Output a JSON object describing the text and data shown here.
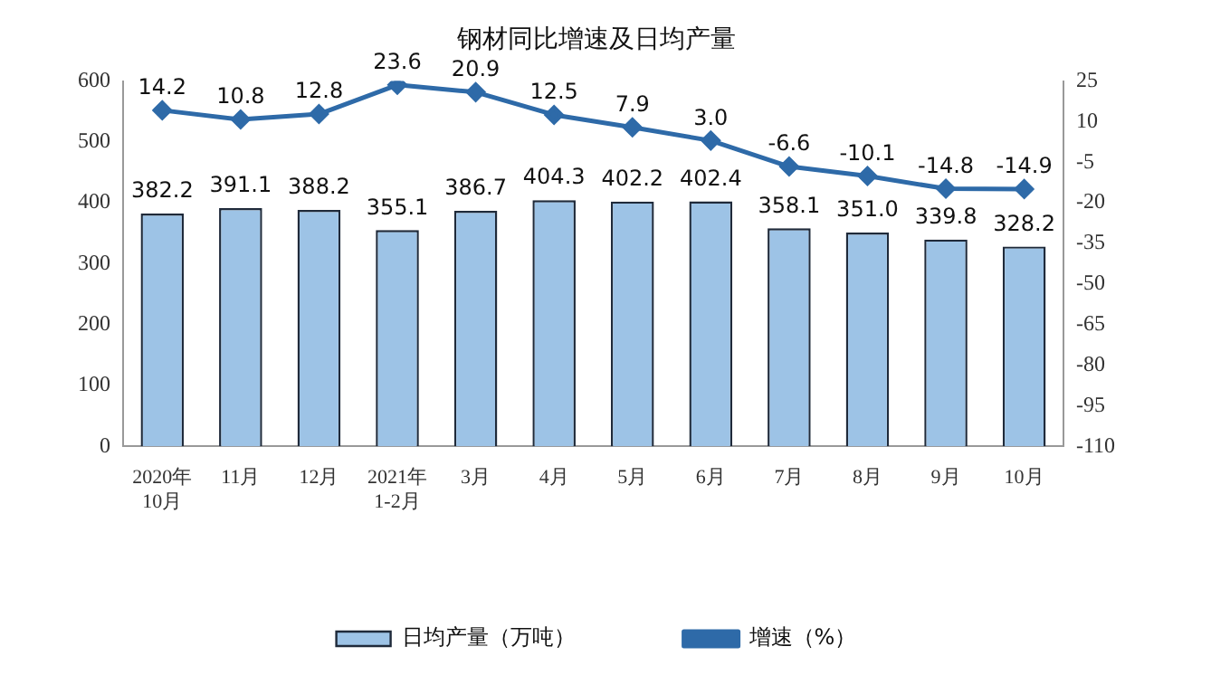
{
  "chart_data": {
    "type": "bar",
    "title": "钢材同比增速及日均产量",
    "categories": [
      "2020年\n10月",
      "11月",
      "12月",
      "2021年\n1-2月",
      "3月",
      "4月",
      "5月",
      "6月",
      "7月",
      "8月",
      "9月",
      "10月"
    ],
    "series": [
      {
        "name": "日均产量（万吨）",
        "color": "#9dc3e6",
        "values": [
          382.2,
          391.1,
          388.2,
          355.1,
          386.7,
          404.3,
          402.2,
          402.4,
          358.1,
          351.0,
          339.8,
          328.2
        ],
        "value_labels": [
          "382.2",
          "391.1",
          "388.2",
          "355.1",
          "386.7",
          "404.3",
          "402.2",
          "402.4",
          "358.1",
          "351.0",
          "339.8",
          "328.2"
        ]
      },
      {
        "name": "增速（%）",
        "type": "line",
        "axis": "y2",
        "color": "#2e6aa8",
        "values": [
          14.2,
          10.8,
          12.8,
          23.6,
          20.9,
          12.5,
          7.9,
          3.0,
          -6.6,
          -10.1,
          -14.8,
          -14.9
        ],
        "value_labels": [
          "14.2",
          "10.8",
          "12.8",
          "23.6",
          "20.9",
          "12.5",
          "7.9",
          "3.0",
          "-6.6",
          "-10.1",
          "-14.8",
          "-14.9"
        ]
      }
    ],
    "ylim": [
      0,
      600
    ],
    "yticks": [
      0,
      100,
      200,
      300,
      400,
      500,
      600
    ],
    "y2lim": [
      -110,
      25
    ],
    "y2ticks": [
      -110,
      -95,
      -80,
      -65,
      -50,
      -35,
      -20,
      -5,
      10,
      25
    ],
    "legend": "bottom",
    "marker": "diamond",
    "line_style": "solid",
    "grid": false
  }
}
